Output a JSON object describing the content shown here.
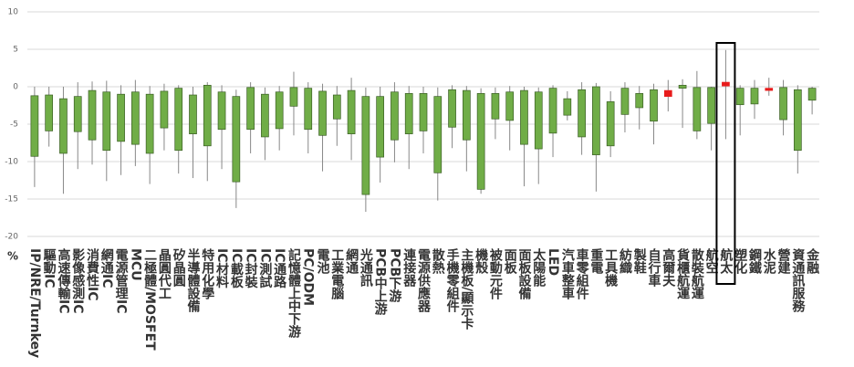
{
  "chart_data": {
    "type": "candlestick",
    "y_label": "%",
    "categories": [
      "IP/NRE/Turnkey",
      "驅動IC",
      "高速傳輸IC",
      "影像感測IC",
      "消費性IC",
      "網通IC",
      "電源管理IC",
      "MCU",
      "二極體/MOSFET",
      "晶圓代工",
      "矽晶圓",
      "半導體設備",
      "特用化學",
      "IC材料",
      "IC載板",
      "IC封裝",
      "IC測試",
      "IC通路",
      "記憶體上中下游",
      "PC/ODM",
      "電池",
      "工業電腦",
      "網通",
      "光通訊",
      "PCB中上游",
      "PCB下游",
      "連接器",
      "電源供應器",
      "散熱",
      "手機零組件",
      "主機板/顯示卡",
      "機殼",
      "被動元件",
      "面板",
      "面板設備",
      "太陽能",
      "LED",
      "汽車整車",
      "車零組件",
      "重電",
      "工具機",
      "紡織",
      "製鞋",
      "自行車",
      "高爾夫",
      "貨櫃航運",
      "散裝航運",
      "航空",
      "航太",
      "塑化",
      "鋼鐵",
      "水泥",
      "營建",
      "資通訊服務",
      "金融"
    ],
    "open": [
      -1.2,
      -1.1,
      -1.6,
      -1.3,
      -0.5,
      -0.7,
      -1.0,
      -0.7,
      -1.0,
      -0.6,
      -0.2,
      -1.1,
      0.2,
      -0.7,
      -1.3,
      -0.1,
      -1.0,
      -0.7,
      -0.1,
      -0.2,
      -0.6,
      -1.1,
      -0.5,
      -1.3,
      -1.3,
      -0.7,
      -0.9,
      -0.9,
      -1.3,
      -0.4,
      -0.5,
      -0.9,
      -0.9,
      -0.7,
      -0.5,
      -0.7,
      -0.2,
      -1.6,
      -0.4,
      0.0,
      -2.0,
      -0.2,
      -0.9,
      -0.4,
      -1.3,
      0.2,
      -0.1,
      -0.1,
      0.1,
      -0.2,
      -0.2,
      -0.5,
      -0.1,
      -0.4,
      -0.2
    ],
    "close": [
      -9.3,
      -5.9,
      -8.9,
      -6.0,
      -7.1,
      -8.5,
      -7.3,
      -7.7,
      -8.9,
      -5.5,
      -8.5,
      -6.3,
      -7.9,
      -5.7,
      -12.7,
      -5.7,
      -6.7,
      -5.6,
      -2.6,
      -5.7,
      -6.5,
      -4.3,
      -6.3,
      -14.4,
      -9.4,
      -7.1,
      -6.3,
      -5.9,
      -11.5,
      -5.4,
      -7.1,
      -13.7,
      -4.3,
      -4.5,
      -7.7,
      -8.3,
      -6.2,
      -3.8,
      -6.7,
      -9.1,
      -7.9,
      -3.7,
      -2.8,
      -4.6,
      -0.5,
      -0.2,
      -5.9,
      -4.9,
      0.6,
      -2.4,
      -2.3,
      -0.2,
      -4.4,
      -8.5,
      -1.8
    ],
    "high": [
      0.0,
      0.0,
      0.0,
      0.6,
      0.7,
      0.8,
      0.2,
      0.9,
      0.1,
      0.4,
      0.2,
      0.0,
      0.6,
      0.2,
      -0.4,
      0.6,
      -0.1,
      0.1,
      2.0,
      0.6,
      0.4,
      0.1,
      1.2,
      -0.1,
      0.0,
      0.6,
      0.1,
      0.0,
      -0.1,
      0.2,
      0.1,
      -0.2,
      -0.1,
      0.1,
      0.0,
      -0.1,
      0.2,
      -0.6,
      0.6,
      0.5,
      -0.6,
      0.6,
      0.1,
      0.4,
      0.9,
      1.0,
      2.1,
      0.0,
      4.9,
      0.2,
      0.9,
      1.2,
      0.9,
      0.2,
      0.0
    ],
    "low": [
      -13.4,
      -8.0,
      -14.3,
      -11.0,
      -10.4,
      -12.6,
      -11.8,
      -10.6,
      -13.0,
      -8.5,
      -11.6,
      -12.2,
      -12.6,
      -11.0,
      -16.2,
      -8.9,
      -9.8,
      -8.5,
      -6.5,
      -8.9,
      -11.3,
      -7.9,
      -9.8,
      -16.7,
      -12.8,
      -10.1,
      -11.0,
      -8.9,
      -15.2,
      -8.2,
      -11.3,
      -14.3,
      -7.0,
      -8.5,
      -13.3,
      -13.0,
      -9.4,
      -4.5,
      -9.1,
      -14.0,
      -9.4,
      -6.1,
      -5.7,
      -7.7,
      -3.3,
      -5.5,
      -7.0,
      -8.5,
      -7.0,
      -6.5,
      -4.3,
      -1.2,
      -6.5,
      -11.6,
      -3.7
    ],
    "up_color": "#e81c1c",
    "down_color": "#70ad47",
    "ylim": [
      -20,
      10
    ],
    "yticks": [
      -20,
      -15,
      -10,
      -5,
      0,
      5,
      10
    ],
    "grid": true
  }
}
